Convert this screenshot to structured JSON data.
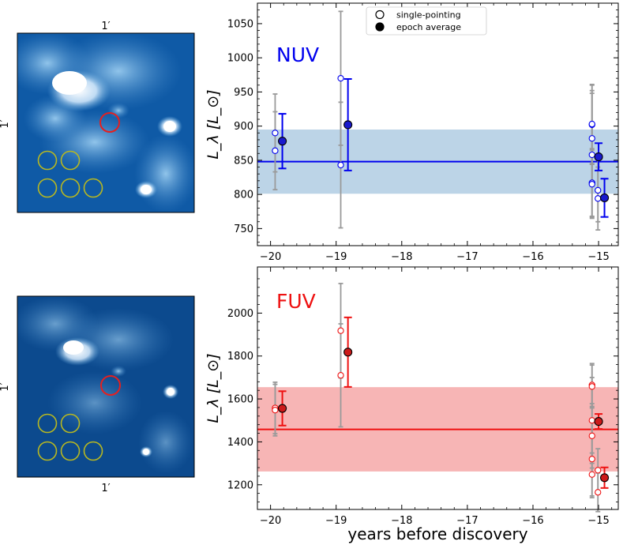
{
  "images": {
    "nuv": {
      "scale_top": "1′",
      "scale_left": "1′"
    },
    "fuv": {
      "scale_bottom": "1′",
      "scale_left": "1′"
    }
  },
  "legend": {
    "open": "single-pointing",
    "filled": "epoch average"
  },
  "colors": {
    "nuv": "#0000ee",
    "nuv_band": "#b8d2e6",
    "nuv_marker_fill": "#1a1acd",
    "fuv": "#ee1111",
    "fuv_band": "#f7b1b1",
    "fuv_marker_fill": "#cc1a1a",
    "errorbar_gray": "#9a9a9a"
  },
  "chart_data": [
    {
      "type": "scatter",
      "name": "nuv",
      "panel_label": "NUV",
      "ylabel": "L_λ [L_⊙]",
      "xlabel": "",
      "xlim": [
        -20.2,
        -14.7
      ],
      "ylim": [
        725,
        1080
      ],
      "xticks": [
        -20,
        -19,
        -18,
        -17,
        -16,
        -15
      ],
      "xtick_labels": [
        "−20",
        "−19",
        "−18",
        "−17",
        "−16",
        "−15"
      ],
      "yticks": [
        750,
        800,
        850,
        900,
        950,
        1000,
        1050
      ],
      "ytick_labels": [
        "750",
        "800",
        "850",
        "900",
        "950",
        "1000",
        "1050"
      ],
      "mean": 848,
      "band": [
        801,
        895
      ],
      "single_pointing": [
        {
          "x": -19.93,
          "y": 890,
          "err": 57
        },
        {
          "x": -19.93,
          "y": 864,
          "err": 57
        },
        {
          "x": -18.93,
          "y": 970,
          "err": 98
        },
        {
          "x": -18.93,
          "y": 843,
          "err": 92
        },
        {
          "x": -15.1,
          "y": 902,
          "err": 58
        },
        {
          "x": -15.1,
          "y": 903,
          "err": 58
        },
        {
          "x": -15.1,
          "y": 882,
          "err": 70
        },
        {
          "x": -15.1,
          "y": 858,
          "err": 90
        },
        {
          "x": -15.1,
          "y": 817,
          "err": 50
        },
        {
          "x": -15.1,
          "y": 815,
          "err": 50
        },
        {
          "x": -15.01,
          "y": 794,
          "err": 46
        },
        {
          "x": -15.01,
          "y": 806,
          "err": 46
        }
      ],
      "epoch_average": [
        {
          "x": -19.82,
          "y": 878,
          "err": 40
        },
        {
          "x": -18.82,
          "y": 902,
          "err": 67
        },
        {
          "x": -15.0,
          "y": 855,
          "err": 20
        },
        {
          "x": -14.91,
          "y": 795,
          "err": 28
        }
      ]
    },
    {
      "type": "scatter",
      "name": "fuv",
      "panel_label": "FUV",
      "ylabel": "L_λ [L_⊙]",
      "xlabel": "years before discovery",
      "xlim": [
        -20.2,
        -14.7
      ],
      "ylim": [
        1085,
        2215
      ],
      "xticks": [
        -20,
        -19,
        -18,
        -17,
        -16,
        -15
      ],
      "xtick_labels": [
        "−20",
        "−19",
        "−18",
        "−17",
        "−16",
        "−15"
      ],
      "yticks": [
        1200,
        1400,
        1600,
        1800,
        2000
      ],
      "ytick_labels": [
        "1200",
        "1400",
        "1600",
        "1800",
        "2000"
      ],
      "mean": 1458,
      "band": [
        1262,
        1655
      ],
      "single_pointing": [
        {
          "x": -19.93,
          "y": 1558,
          "err": 120
        },
        {
          "x": -19.93,
          "y": 1548,
          "err": 120
        },
        {
          "x": -18.93,
          "y": 1918,
          "err": 220
        },
        {
          "x": -18.93,
          "y": 1710,
          "err": 240
        },
        {
          "x": -15.1,
          "y": 1665,
          "err": 100
        },
        {
          "x": -15.1,
          "y": 1658,
          "err": 100
        },
        {
          "x": -15.1,
          "y": 1500,
          "err": 200
        },
        {
          "x": -15.1,
          "y": 1428,
          "err": 150
        },
        {
          "x": -15.1,
          "y": 1320,
          "err": 180
        },
        {
          "x": -15.1,
          "y": 1248,
          "err": 100
        },
        {
          "x": -15.01,
          "y": 1268,
          "err": 100
        },
        {
          "x": -15.01,
          "y": 1165,
          "err": 90
        }
      ],
      "epoch_average": [
        {
          "x": -19.82,
          "y": 1556,
          "err": 80
        },
        {
          "x": -18.82,
          "y": 1818,
          "err": 162
        },
        {
          "x": -15.0,
          "y": 1495,
          "err": 35
        },
        {
          "x": -14.91,
          "y": 1233,
          "err": 48
        }
      ]
    }
  ]
}
